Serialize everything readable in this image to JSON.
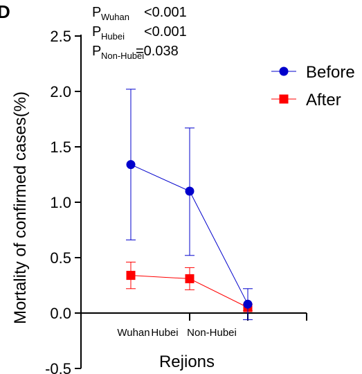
{
  "panel_label": "D",
  "annotations": [
    {
      "prefix": "P",
      "sub": "Wuhan",
      "text": "<0.001"
    },
    {
      "prefix": "P",
      "sub": "Hubei",
      "text": "<0.001"
    },
    {
      "prefix": "P",
      "sub": "Non-Hubei",
      "text": "=0.038"
    }
  ],
  "chart_data": {
    "type": "line",
    "title": "",
    "xlabel": "Rejions",
    "ylabel": "Mortality of confirmed cases(%)",
    "ylim": [
      -0.5,
      2.5
    ],
    "yticks": [
      -0.5,
      0.0,
      0.5,
      1.0,
      1.5,
      2.0,
      2.5
    ],
    "ytick_labels": [
      "-0.5",
      "0.0",
      "0.5",
      "1.0",
      "1.5",
      "2.0",
      "2.5"
    ],
    "categories": [
      "Wuhan",
      "Hubei",
      "Non-Hubei"
    ],
    "legend_position": "top-right",
    "grid": false,
    "series": [
      {
        "name": "Before",
        "color": "#0000cc",
        "marker": "circle",
        "values": [
          1.34,
          1.1,
          0.08
        ],
        "err_low": [
          0.66,
          0.52,
          -0.06
        ],
        "err_high": [
          2.02,
          1.67,
          0.22
        ]
      },
      {
        "name": "After",
        "color": "#ff0000",
        "marker": "square",
        "values": [
          0.34,
          0.31,
          0.05
        ],
        "err_low": [
          0.22,
          0.21,
          0.02
        ],
        "err_high": [
          0.46,
          0.41,
          0.08
        ]
      }
    ]
  }
}
